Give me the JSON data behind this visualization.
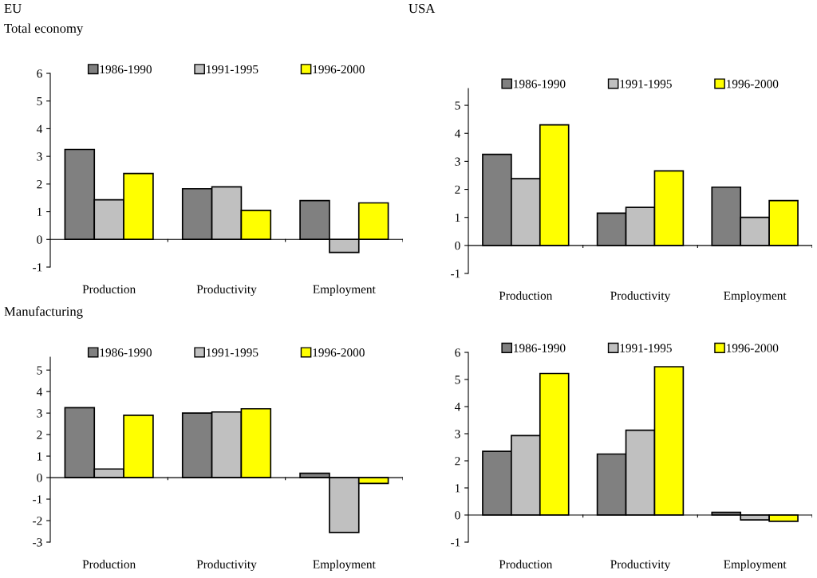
{
  "chart_data": [
    {
      "type": "bar",
      "title": "EU",
      "subtitle": "Total economy",
      "categories": [
        "Production",
        "Productivity",
        "Employment"
      ],
      "ylim": [
        -1,
        6
      ],
      "yticks": [
        -1,
        0,
        1,
        2,
        3,
        4,
        5,
        6
      ],
      "legend": "top",
      "series": [
        {
          "name": "1986-1990",
          "color": "#808080",
          "values": [
            3.25,
            1.83,
            1.4
          ]
        },
        {
          "name": "1991-1995",
          "color": "#c0c0c0",
          "values": [
            1.43,
            1.9,
            -0.47
          ]
        },
        {
          "name": "1996-2000",
          "color": "#ffff00",
          "values": [
            2.38,
            1.05,
            1.32
          ]
        }
      ]
    },
    {
      "type": "bar",
      "title": "USA",
      "categories": [
        "Production",
        "Productivity",
        "Employment"
      ],
      "ylim": [
        -1,
        5.6
      ],
      "yticks": [
        -1,
        0,
        1,
        2,
        3,
        4,
        5
      ],
      "legend": "top",
      "series": [
        {
          "name": "1986-1990",
          "color": "#808080",
          "values": [
            3.25,
            1.15,
            2.08
          ]
        },
        {
          "name": "1991-1995",
          "color": "#c0c0c0",
          "values": [
            2.38,
            1.36,
            1.0
          ]
        },
        {
          "name": "1996-2000",
          "color": "#ffff00",
          "values": [
            4.3,
            2.66,
            1.6
          ]
        }
      ]
    },
    {
      "type": "bar",
      "title": "Manufacturing",
      "categories": [
        "Production",
        "Productivity",
        "Employment"
      ],
      "ylim": [
        -3,
        5.6
      ],
      "yticks": [
        -3,
        -2,
        -1,
        0,
        1,
        2,
        3,
        4,
        5
      ],
      "legend": "top",
      "series": [
        {
          "name": "1986-1990",
          "color": "#808080",
          "values": [
            3.25,
            3.0,
            0.2
          ]
        },
        {
          "name": "1991-1995",
          "color": "#c0c0c0",
          "values": [
            0.4,
            3.05,
            -2.55
          ]
        },
        {
          "name": "1996-2000",
          "color": "#ffff00",
          "values": [
            2.9,
            3.2,
            -0.27
          ]
        }
      ]
    },
    {
      "type": "bar",
      "categories": [
        "Production",
        "Productivity",
        "Employment"
      ],
      "ylim": [
        -1,
        6
      ],
      "yticks": [
        -1,
        0,
        1,
        2,
        3,
        4,
        5,
        6
      ],
      "legend": "top",
      "series": [
        {
          "name": "1986-1990",
          "color": "#808080",
          "values": [
            2.35,
            2.25,
            0.1
          ]
        },
        {
          "name": "1991-1995",
          "color": "#c0c0c0",
          "values": [
            2.93,
            3.13,
            -0.18
          ]
        },
        {
          "name": "1996-2000",
          "color": "#ffff00",
          "values": [
            5.22,
            5.47,
            -0.23
          ]
        }
      ]
    }
  ]
}
